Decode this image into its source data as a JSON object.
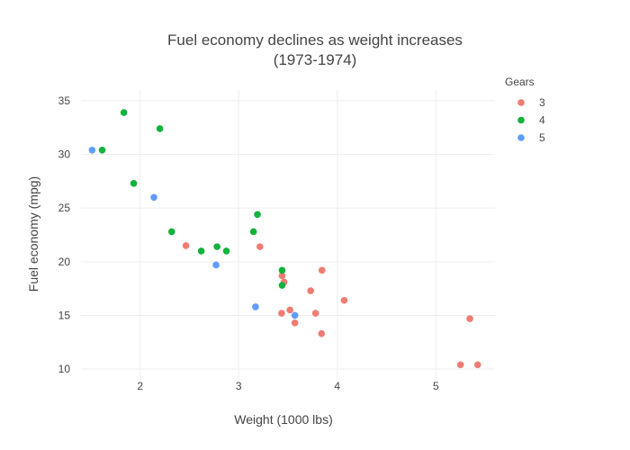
{
  "chart_data": {
    "type": "scatter",
    "title": "Fuel economy declines as weight increases",
    "subtitle": "(1973-1974)",
    "xlabel": "Weight (1000 lbs)",
    "ylabel": "Fuel economy (mpg)",
    "xlim": [
      1.4,
      5.6
    ],
    "ylim": [
      9,
      36
    ],
    "xticks": [
      2,
      3,
      4,
      5
    ],
    "yticks": [
      10,
      15,
      20,
      25,
      30,
      35
    ],
    "grid": true,
    "legend_title": "Gears",
    "legend_position": "top-right",
    "series": [
      {
        "name": "3",
        "color": "#ef7b73",
        "points": [
          [
            2.465,
            21.5
          ],
          [
            3.215,
            21.4
          ],
          [
            3.44,
            18.7
          ],
          [
            3.46,
            18.1
          ],
          [
            3.57,
            14.3
          ],
          [
            4.07,
            16.4
          ],
          [
            3.73,
            17.3
          ],
          [
            3.78,
            15.2
          ],
          [
            5.25,
            10.4
          ],
          [
            5.424,
            10.4
          ],
          [
            5.345,
            14.7
          ],
          [
            3.52,
            15.5
          ],
          [
            3.435,
            15.2
          ],
          [
            3.84,
            13.3
          ],
          [
            3.845,
            19.2
          ]
        ]
      },
      {
        "name": "4",
        "color": "#10b33b",
        "points": [
          [
            2.62,
            21.0
          ],
          [
            2.875,
            21.0
          ],
          [
            2.32,
            22.8
          ],
          [
            3.19,
            24.4
          ],
          [
            3.15,
            22.8
          ],
          [
            3.44,
            19.2
          ],
          [
            3.44,
            17.8
          ],
          [
            2.2,
            32.4
          ],
          [
            1.615,
            30.4
          ],
          [
            1.835,
            33.9
          ],
          [
            1.935,
            27.3
          ],
          [
            2.78,
            21.4
          ]
        ]
      },
      {
        "name": "5",
        "color": "#619cff",
        "points": [
          [
            2.14,
            26.0
          ],
          [
            1.513,
            30.4
          ],
          [
            3.17,
            15.8
          ],
          [
            2.77,
            19.7
          ],
          [
            3.57,
            15.0
          ]
        ]
      }
    ]
  }
}
